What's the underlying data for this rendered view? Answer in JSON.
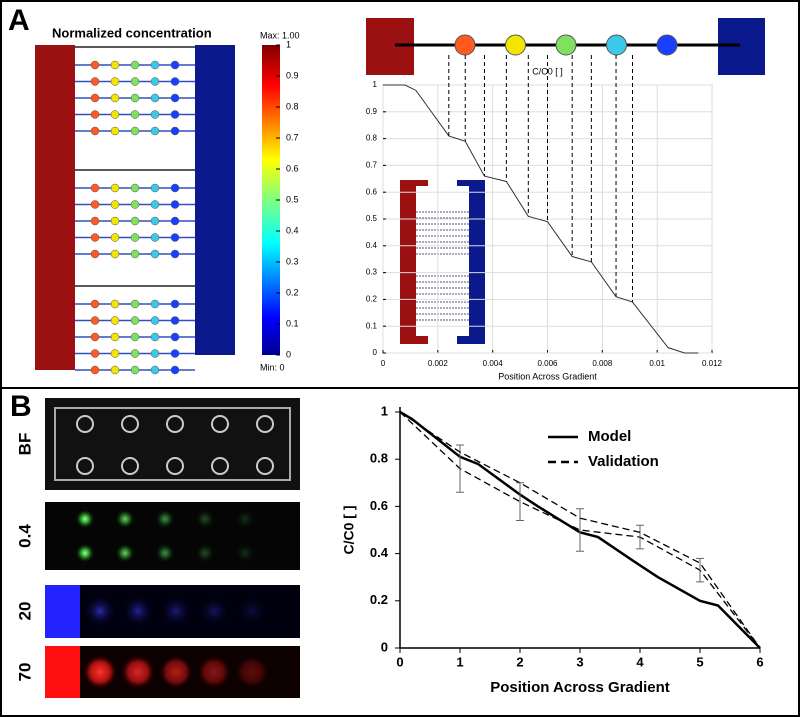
{
  "panel_labels": [
    "A",
    "B"
  ],
  "micrograph_labels": [
    "BF",
    "0.4",
    "20",
    "70"
  ],
  "chart_data": [
    {
      "type": "heatmap",
      "title": "Normalized concentration",
      "max_label": "Max: 1.00",
      "min_label": "Min: 0",
      "clim": [
        0,
        1
      ],
      "cticks": [
        0,
        0.1,
        0.2,
        0.3,
        0.4,
        0.5,
        0.6,
        0.7,
        0.8,
        0.9,
        1
      ]
    },
    {
      "type": "line",
      "title": "C/C0 [ ]",
      "x_label": "Position Across Gradient",
      "x": [
        0,
        0.0008,
        0.0012,
        0.0024,
        0.003,
        0.0037,
        0.0045,
        0.0053,
        0.006,
        0.0069,
        0.0076,
        0.0085,
        0.0091,
        0.0104,
        0.011,
        0.0115
      ],
      "series": [
        {
          "color": "#333333",
          "values": [
            1,
            1,
            0.98,
            0.81,
            0.79,
            0.66,
            0.64,
            0.51,
            0.49,
            0.36,
            0.34,
            0.21,
            0.19,
            0.02,
            0,
            0
          ]
        }
      ],
      "xlim": [
        0,
        0.012
      ],
      "xticks": [
        0,
        0.002,
        0.004,
        0.006,
        0.008,
        0.01,
        0.012
      ],
      "ylim": [
        0,
        1
      ],
      "yticks": [
        0,
        0.1,
        0.2,
        0.3,
        0.4,
        0.5,
        0.6,
        0.7,
        0.8,
        0.9,
        1
      ],
      "grid": true
    },
    {
      "type": "line",
      "x_label": "Position Across Gradient",
      "y_label": "C/C0 [ ]",
      "series": [
        {
          "name": "Model",
          "color": "#000000",
          "style": "solid",
          "x": [
            0,
            0.2,
            1,
            1.3,
            2,
            2.3,
            3,
            3.3,
            4,
            4.3,
            5,
            5.3,
            6
          ],
          "values": [
            1,
            0.97,
            0.81,
            0.78,
            0.65,
            0.6,
            0.49,
            0.47,
            0.35,
            0.3,
            0.2,
            0.18,
            0
          ]
        },
        {
          "name": "Validation",
          "color": "#000000",
          "style": "dashed",
          "x": [
            0,
            1,
            2,
            3,
            4,
            5,
            6
          ],
          "values": [
            1,
            0.76,
            0.62,
            0.5,
            0.47,
            0.33,
            0
          ],
          "errors": [
            0,
            0.1,
            0.08,
            0.09,
            0.05,
            0.05,
            0
          ]
        },
        {
          "color": "#000000",
          "style": "dashed",
          "x": [
            0,
            1,
            2,
            3,
            4,
            5,
            6
          ],
          "values": [
            1,
            0.83,
            0.7,
            0.55,
            0.49,
            0.36,
            0
          ]
        }
      ],
      "xlim": [
        0,
        6
      ],
      "xticks": [
        0,
        1,
        2,
        3,
        4,
        5,
        6
      ],
      "ylim": [
        0,
        1
      ],
      "yticks": [
        0,
        0.2,
        0.4,
        0.6,
        0.8,
        1
      ],
      "grid": false
    }
  ]
}
